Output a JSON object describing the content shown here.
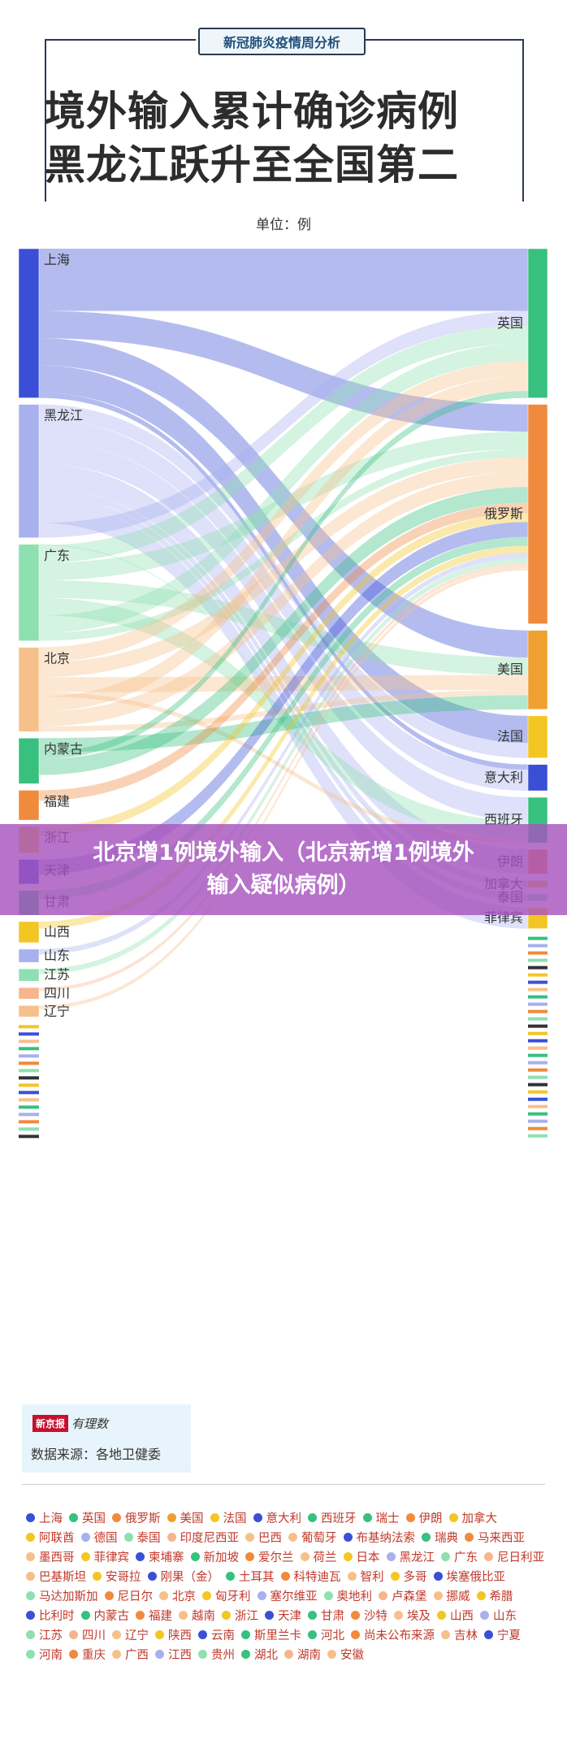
{
  "header": {
    "badge": "新冠肺炎疫情周分析",
    "title_line1": "境外输入累计确诊病例",
    "title_line2": "黑龙江跃升至全国第二",
    "unit": "单位：例"
  },
  "overlay": {
    "line1": "北京增1例境外输入（北京新增1例境外",
    "line2": "输入疑似病例）"
  },
  "source": {
    "logo_red": "新京报",
    "logo_script": "有理数",
    "text": "数据来源：各地卫健委"
  },
  "colors": {
    "blue": "#3b4fd6",
    "lavender": "#a9b0ee",
    "green": "#37c07e",
    "light_green": "#8ee0b0",
    "orange": "#f08a3c",
    "light_orange": "#f6c08a",
    "yellow": "#f3c623",
    "peach": "#f7b58e",
    "magenta_overlay": "#a754be"
  },
  "chart_data": {
    "type": "sankey",
    "title": "境外输入累计确诊病例",
    "unit": "单位：例",
    "source_nodes": [
      {
        "name": "上海",
        "color": "#3b4fd6",
        "value": 170
      },
      {
        "name": "黑龙江",
        "color": "#a9b0ee",
        "value": 152
      },
      {
        "name": "广东",
        "color": "#8ee0b0",
        "value": 110
      },
      {
        "name": "北京",
        "color": "#f6c08a",
        "value": 96
      },
      {
        "name": "内蒙古",
        "color": "#37c07e",
        "value": 52
      },
      {
        "name": "福建",
        "color": "#f08a3c",
        "value": 34
      },
      {
        "name": "浙江",
        "color": "#f3c623",
        "value": 30
      },
      {
        "name": "天津",
        "color": "#3b4fd6",
        "value": 28
      },
      {
        "name": "甘肃",
        "color": "#37c07e",
        "value": 28
      },
      {
        "name": "山西",
        "color": "#f3c623",
        "value": 24
      },
      {
        "name": "山东",
        "color": "#a9b0ee",
        "value": 15
      },
      {
        "name": "江苏",
        "color": "#8ee0b0",
        "value": 14
      },
      {
        "name": "四川",
        "color": "#f7b58e",
        "value": 13
      },
      {
        "name": "辽宁",
        "color": "#f6c08a",
        "value": 13
      }
    ],
    "target_nodes": [
      {
        "name": "英国",
        "color": "#37c07e",
        "value": 170
      },
      {
        "name": "俄罗斯",
        "color": "#f08a3c",
        "value": 250
      },
      {
        "name": "美国",
        "color": "#f0a030",
        "value": 90
      },
      {
        "name": "法国",
        "color": "#f3c623",
        "value": 48
      },
      {
        "name": "意大利",
        "color": "#3b4fd6",
        "value": 30
      },
      {
        "name": "西班牙",
        "color": "#37c07e",
        "value": 52
      },
      {
        "name": "伊朗",
        "color": "#f08a3c",
        "value": 28
      },
      {
        "name": "加拿大",
        "color": "#f3c623",
        "value": 8
      },
      {
        "name": "泰国",
        "color": "#8ee0b0",
        "value": 8
      },
      {
        "name": "菲律宾",
        "color": "#f3c623",
        "value": 24
      }
    ],
    "legend": [
      {
        "name": "上海",
        "color": "#3b4fd6"
      },
      {
        "name": "英国",
        "color": "#37c07e"
      },
      {
        "name": "俄罗斯",
        "color": "#f08a3c"
      },
      {
        "name": "美国",
        "color": "#f0a030"
      },
      {
        "name": "法国",
        "color": "#f3c623"
      },
      {
        "name": "意大利",
        "color": "#3b4fd6"
      },
      {
        "name": "西班牙",
        "color": "#37c07e"
      },
      {
        "name": "瑞士",
        "color": "#37c07e"
      },
      {
        "name": "伊朗",
        "color": "#f08a3c"
      },
      {
        "name": "加拿大",
        "color": "#f3c623"
      },
      {
        "name": "阿联酋",
        "color": "#f3c623"
      },
      {
        "name": "德国",
        "color": "#a9b0ee"
      },
      {
        "name": "泰国",
        "color": "#8ee0b0"
      },
      {
        "name": "印度尼西亚",
        "color": "#f7b58e"
      },
      {
        "name": "巴西",
        "color": "#f6c08a"
      },
      {
        "name": "葡萄牙",
        "color": "#f6c08a"
      },
      {
        "name": "布基纳法索",
        "color": "#3b4fd6"
      },
      {
        "name": "瑞典",
        "color": "#37c07e"
      },
      {
        "name": "马来西亚",
        "color": "#f08a3c"
      },
      {
        "name": "墨西哥",
        "color": "#f6c08a"
      },
      {
        "name": "菲律宾",
        "color": "#f3c623"
      },
      {
        "name": "柬埔寨",
        "color": "#3b4fd6"
      },
      {
        "name": "新加坡",
        "color": "#37c07e"
      },
      {
        "name": "爱尔兰",
        "color": "#f08a3c"
      },
      {
        "name": "荷兰",
        "color": "#f6c08a"
      },
      {
        "name": "日本",
        "color": "#f3c623"
      },
      {
        "name": "黑龙江",
        "color": "#a9b0ee"
      },
      {
        "name": "广东",
        "color": "#8ee0b0"
      },
      {
        "name": "尼日利亚",
        "color": "#f7b58e"
      },
      {
        "name": "巴基斯坦",
        "color": "#f6c08a"
      },
      {
        "name": "安哥拉",
        "color": "#f3c623"
      },
      {
        "name": "刚果（金）",
        "color": "#3b4fd6"
      },
      {
        "name": "土耳其",
        "color": "#37c07e"
      },
      {
        "name": "科特迪瓦",
        "color": "#f08a3c"
      },
      {
        "name": "智利",
        "color": "#f6c08a"
      },
      {
        "name": "多哥",
        "color": "#f3c623"
      },
      {
        "name": "埃塞俄比亚",
        "color": "#3b4fd6"
      },
      {
        "name": "马达加斯加",
        "color": "#8ee0b0"
      },
      {
        "name": "尼日尔",
        "color": "#f08a3c"
      },
      {
        "name": "北京",
        "color": "#f6c08a"
      },
      {
        "name": "匈牙利",
        "color": "#f3c623"
      },
      {
        "name": "塞尔维亚",
        "color": "#a9b0ee"
      },
      {
        "name": "奥地利",
        "color": "#8ee0b0"
      },
      {
        "name": "卢森堡",
        "color": "#f7b58e"
      },
      {
        "name": "挪威",
        "color": "#f6c08a"
      },
      {
        "name": "希腊",
        "color": "#f3c623"
      },
      {
        "name": "比利时",
        "color": "#3b4fd6"
      },
      {
        "name": "内蒙古",
        "color": "#37c07e"
      },
      {
        "name": "福建",
        "color": "#f08a3c"
      },
      {
        "name": "越南",
        "color": "#f6c08a"
      },
      {
        "name": "浙江",
        "color": "#f3c623"
      },
      {
        "name": "天津",
        "color": "#3b4fd6"
      },
      {
        "name": "甘肃",
        "color": "#37c07e"
      },
      {
        "name": "沙特",
        "color": "#f08a3c"
      },
      {
        "name": "埃及",
        "color": "#f6c08a"
      },
      {
        "name": "山西",
        "color": "#f3c623"
      },
      {
        "name": "山东",
        "color": "#a9b0ee"
      },
      {
        "name": "江苏",
        "color": "#8ee0b0"
      },
      {
        "name": "四川",
        "color": "#f7b58e"
      },
      {
        "name": "辽宁",
        "color": "#f6c08a"
      },
      {
        "name": "陕西",
        "color": "#f3c623"
      },
      {
        "name": "云南",
        "color": "#3b4fd6"
      },
      {
        "name": "斯里兰卡",
        "color": "#37c07e"
      },
      {
        "name": "河北",
        "color": "#37c07e"
      },
      {
        "name": "尚未公布来源",
        "color": "#f08a3c"
      },
      {
        "name": "吉林",
        "color": "#f6c08a"
      },
      {
        "name": "宁夏",
        "color": "#3b4fd6"
      },
      {
        "name": "河南",
        "color": "#8ee0b0"
      },
      {
        "name": "重庆",
        "color": "#f08a3c"
      },
      {
        "name": "广西",
        "color": "#f6c08a"
      },
      {
        "name": "江西",
        "color": "#a9b0ee"
      },
      {
        "name": "贵州",
        "color": "#8ee0b0"
      },
      {
        "name": "湖北",
        "color": "#37c07e"
      },
      {
        "name": "湖南",
        "color": "#f7b58e"
      },
      {
        "name": "安徽",
        "color": "#f6c08a"
      }
    ]
  }
}
